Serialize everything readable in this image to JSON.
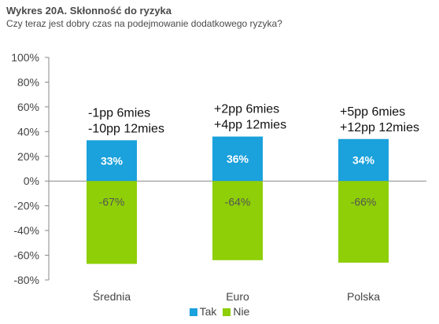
{
  "header": {
    "title": "Wykres 20A. Skłonność do ryzyka",
    "subtitle": "Czy teraz jest dobry czas na podejmowanie dodatkowego ryzyka?"
  },
  "colors": {
    "tak": "#1ba1dc",
    "nie": "#8ecf07"
  },
  "chart_data": {
    "type": "bar",
    "stacked": true,
    "categories": [
      "Średnia",
      "Euro",
      "Polska"
    ],
    "series": [
      {
        "name": "Tak",
        "values": [
          33,
          36,
          34
        ],
        "labels": [
          "33%",
          "36%",
          "34%"
        ]
      },
      {
        "name": "Nie",
        "values": [
          -67,
          -64,
          -66
        ],
        "labels": [
          "-67%",
          "-64%",
          "-66%"
        ]
      }
    ],
    "ylim": [
      -80,
      100
    ],
    "yticks": [
      "100%",
      "80%",
      "60%",
      "40%",
      "20%",
      "0%",
      "-20%",
      "-40%",
      "-60%",
      "-80%"
    ],
    "annotations": [
      [
        "-1pp 6mies",
        "-10pp 12mies"
      ],
      [
        "+2pp 6mies",
        "+4pp 12mies"
      ],
      [
        "+5pp 6mies",
        "+12pp 12mies"
      ]
    ],
    "legend": [
      "Tak",
      "Nie"
    ],
    "legend_position": "bottom",
    "grid": false
  }
}
